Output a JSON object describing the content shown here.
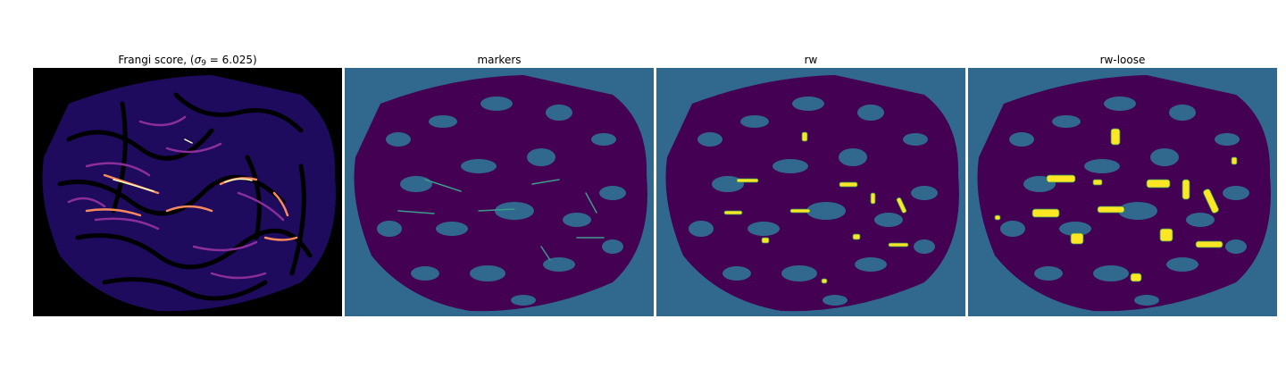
{
  "figure": {
    "panels": [
      {
        "title_prefix": "Frangi score, (",
        "sigma_symbol": "σ",
        "sigma_subscript": "9",
        "title_suffix": " = 6.025)",
        "colormap": "magma",
        "background": "#000000"
      },
      {
        "title": "markers",
        "colormap": "viridis",
        "background": "#31688e",
        "tissue": "#440154",
        "marker": "#3e9a8c"
      },
      {
        "title": "rw",
        "colormap": "viridis",
        "background": "#31688e",
        "tissue": "#440154",
        "marker": "#fde725"
      },
      {
        "title": "rw-loose",
        "colormap": "viridis",
        "background": "#31688e",
        "tissue": "#440154",
        "marker": "#fde725"
      }
    ]
  }
}
